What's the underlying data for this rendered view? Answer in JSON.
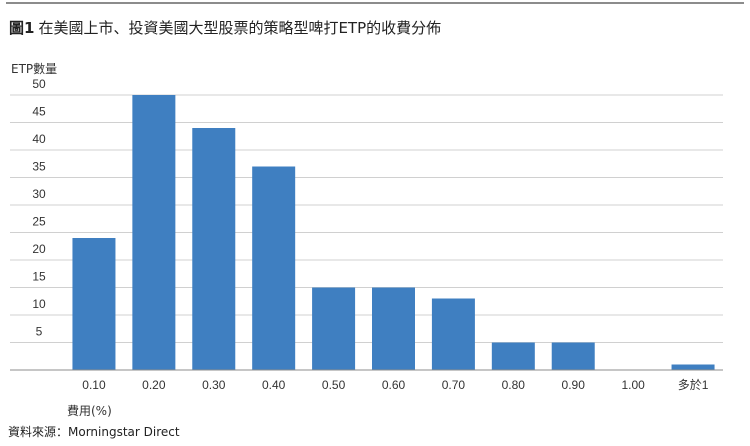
{
  "figure": {
    "number": "圖1",
    "title": "在美國上市、投資美國大型股票的策略型啤打ETP的收費分佈"
  },
  "source": "資料來源：Morningstar Direct",
  "chart_data": {
    "type": "bar",
    "title": "在美國上市、投資美國大型股票的策略型啤打ETP的收費分佈",
    "ylabel": "ETP數量",
    "xlabel": "費用(%)",
    "categories": [
      "0.10",
      "0.20",
      "0.30",
      "0.40",
      "0.50",
      "0.60",
      "0.70",
      "0.80",
      "0.90",
      "1.00",
      "多於1"
    ],
    "values": [
      24,
      50,
      44,
      37,
      15,
      15,
      13,
      5,
      5,
      0,
      1
    ],
    "yticks": [
      5,
      10,
      15,
      20,
      25,
      30,
      35,
      40,
      45,
      50
    ],
    "ylim": [
      0,
      52
    ],
    "grid": true,
    "bar_color": "#3f7fc1",
    "grid_color": "#d0d0d0"
  }
}
